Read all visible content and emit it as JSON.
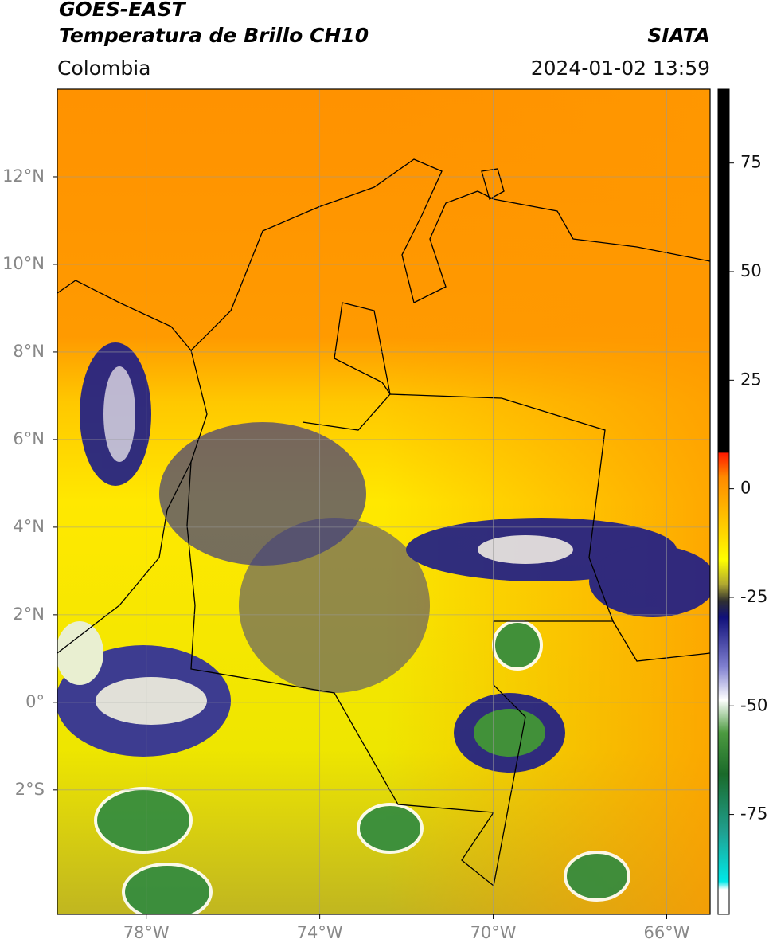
{
  "map": {
    "title": "GOES-EAST",
    "subtitle": "Temperatura de Brillo CH10",
    "source": "SIATA",
    "region": "Colombia",
    "datetime": "2024-01-02 13:59",
    "lonlim": [
      -80.05,
      -65
    ],
    "latlim": [
      -4.84,
      14
    ],
    "lon_ticks": [
      {
        "value": -78,
        "label": "78°W"
      },
      {
        "value": -74,
        "label": "74°W"
      },
      {
        "value": -70,
        "label": "70°W"
      },
      {
        "value": -66,
        "label": "66°W"
      }
    ],
    "lat_ticks": [
      {
        "value": 12,
        "label": "12°N"
      },
      {
        "value": 10,
        "label": "10°N"
      },
      {
        "value": 8,
        "label": "8°N"
      },
      {
        "value": 6,
        "label": "6°N"
      },
      {
        "value": 4,
        "label": "4°N"
      },
      {
        "value": 2,
        "label": "2°N"
      },
      {
        "value": 0,
        "label": "0°"
      },
      {
        "value": -2,
        "label": "2°S"
      }
    ],
    "colorbar": {
      "lim": [
        -98,
        92
      ],
      "ticks": [
        75,
        50,
        25,
        0,
        -25,
        -50,
        -75
      ]
    }
  }
}
